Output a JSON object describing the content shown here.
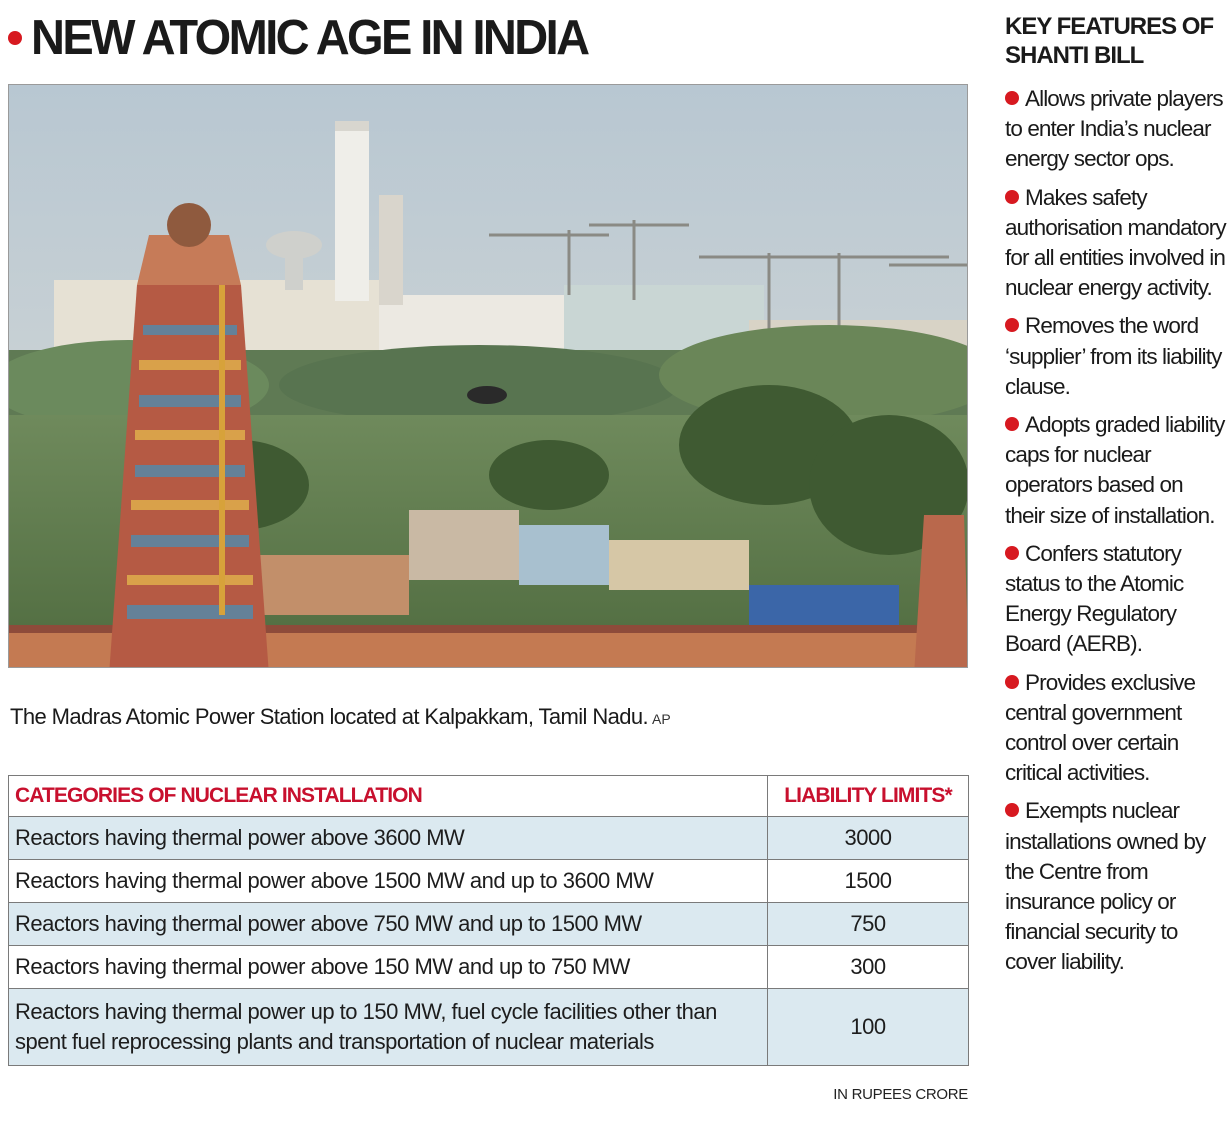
{
  "headline": "NEW ATOMIC AGE IN INDIA",
  "caption": {
    "text": "The Madras Atomic Power Station located at Kalpakkam, Tamil Nadu.",
    "credit": "AP"
  },
  "table": {
    "headers": [
      "CATEGORIES OF NUCLEAR INSTALLATION",
      "LIABILITY LIMITS*"
    ],
    "rows": [
      {
        "category": "Reactors having thermal power above 3600 MW",
        "limit": "3000"
      },
      {
        "category": "Reactors having thermal power above 1500 MW and up to 3600 MW",
        "limit": "1500"
      },
      {
        "category": "Reactors having thermal power above 750 MW and up to 1500 MW",
        "limit": "750"
      },
      {
        "category": "Reactors having thermal power above 150 MW and up to 750 MW",
        "limit": "300"
      },
      {
        "category": "Reactors having thermal power up to 150 MW, fuel cycle facilities other than spent fuel reprocessing plants and transportation of nuclear materials",
        "limit": "100"
      }
    ],
    "unit_note": "IN RUPEES CRORE"
  },
  "sidebar": {
    "title": "KEY FEATURES OF SHANTI BILL",
    "features": [
      "Allows private players to enter India’s nuclear energy sector ops.",
      "Makes safety authorisation mandatory for all entities involved in nuclear energy activity.",
      "Removes the word ‘supplier’ from its liability clause.",
      "Adopts graded liability caps for nuclear operators based on their size of installation.",
      "Confers statutory status to the Atomic Energy Regulatory Board (AERB).",
      "Provides exclusive central government control over certain critical activities.",
      "Exempts nuclear installations owned by the Centre from insurance policy or financial security to cover liability."
    ]
  },
  "colors": {
    "accent_red": "#d71920",
    "header_red": "#c8102e",
    "row_shade": "#dbe9f0"
  }
}
